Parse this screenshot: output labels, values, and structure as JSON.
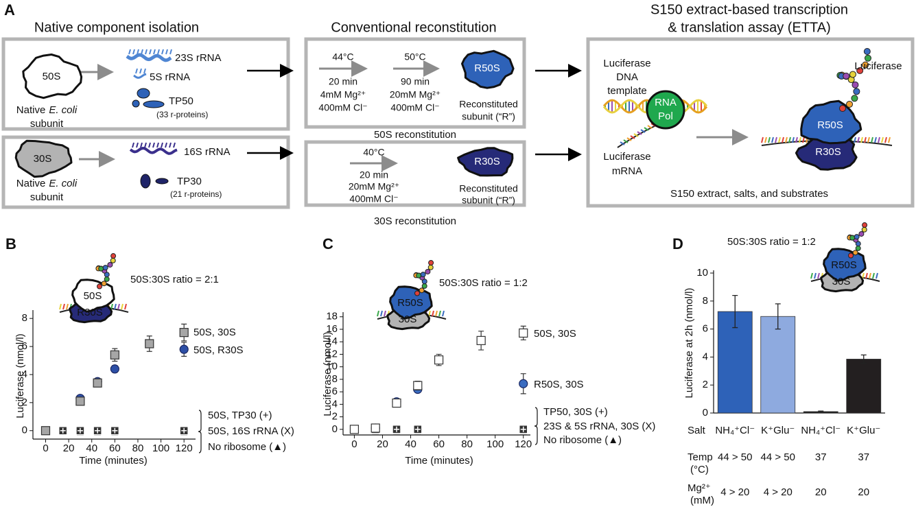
{
  "panel_labels": {
    "a": "A",
    "b": "B",
    "c": "C",
    "d": "D"
  },
  "diagram": {
    "headings": {
      "isolation": "Native component isolation",
      "reconstitution": "Conventional reconstitution",
      "etta_1": "S150 extract-based transcription",
      "etta_2": "& translation assay (ETTA)"
    },
    "native_50s": {
      "subunit": "50S",
      "native": "Native",
      "species": "E. coli",
      "word": "subunit",
      "rrna_23s": "23S rRNA",
      "rrna_5s": "5S rRNA",
      "proteins": "TP50",
      "protein_count": "(33 r-proteins)"
    },
    "native_30s": {
      "subunit": "30S",
      "native": "Native",
      "species": "E. coli",
      "word": "subunit",
      "rrna_16s": "16S rRNA",
      "proteins": "TP30",
      "protein_count": "(21 r-proteins)"
    },
    "recon_50s": {
      "step1": [
        "44°C",
        "20 min",
        "4mM Mg²⁺",
        "400mM Cl⁻"
      ],
      "step2": [
        "50°C",
        "90 min",
        "20mM Mg²⁺",
        "400mM Cl⁻"
      ],
      "subunit": "R50S",
      "product": [
        "Reconstituted",
        "subunit (“R”)"
      ],
      "caption": "50S reconstitution"
    },
    "recon_30s": {
      "step1": [
        "40°C",
        "20 min",
        "20mM Mg²⁺",
        "400mM Cl⁻"
      ],
      "subunit": "R30S",
      "product": [
        "Reconstituted",
        "subunit (“R”)"
      ],
      "caption": "30S reconstitution"
    },
    "etta": {
      "template": [
        "Luciferase",
        "DNA",
        "template"
      ],
      "polymerase": [
        "RNA",
        "Pol"
      ],
      "mrna": [
        "Luciferase",
        "mRNA"
      ],
      "protein": "Luciferase",
      "large": "R50S",
      "small": "R30S",
      "footer": "S150 extract, salts, and substrates"
    }
  },
  "chart_data": [
    {
      "type": "scatter",
      "title": "50S:30S ratio = 2:1",
      "inset_labels": [
        "50S",
        "R30S"
      ],
      "xlabel": "Time (minutes)",
      "ylabel": "Luciferase (nmol/l)",
      "xlim": [
        -11,
        130
      ],
      "xticks": [
        0,
        20,
        40,
        60,
        80,
        100,
        120
      ],
      "ylim": [
        -0.6,
        8.4
      ],
      "yticks": [
        0,
        2,
        4,
        6,
        8
      ],
      "series": [
        {
          "name": "50S, 30S",
          "marker": "square",
          "color": "#a6a6a6",
          "x": [
            0,
            30,
            45,
            60,
            90,
            120
          ],
          "values": [
            0,
            2.1,
            3.4,
            5.4,
            6.2,
            7.0
          ],
          "errors": [
            0,
            0.25,
            0.25,
            0.45,
            0.55,
            0.6
          ]
        },
        {
          "name": "50S, R30S",
          "marker": "circle",
          "color": "#2d4fa6",
          "x": [
            30,
            45,
            60,
            120
          ],
          "values": [
            2.3,
            3.5,
            4.4,
            5.8
          ],
          "errors": [
            0.1,
            0.2,
            0.25,
            0.5
          ]
        },
        {
          "name": "50S, TP30 (+)",
          "marker": "plus",
          "color": "#333333",
          "x": [
            15,
            30,
            45,
            60,
            120
          ],
          "values": [
            0,
            0,
            0,
            0,
            0
          ]
        },
        {
          "name": "50S, 16S rRNA (X)",
          "marker": "x",
          "color": "#333333",
          "x": [
            30,
            45,
            60,
            120
          ],
          "values": [
            0,
            0,
            0,
            0
          ]
        },
        {
          "name": "No ribosome (▲)",
          "marker": "triangle",
          "color": "#333333",
          "x": [
            30,
            45,
            60,
            120
          ],
          "values": [
            0,
            0,
            0,
            0
          ]
        }
      ]
    },
    {
      "type": "scatter",
      "title": "50S:30S ratio = 1:2",
      "inset_labels": [
        "R50S",
        "30S"
      ],
      "xlabel": "Time (minutes)",
      "ylabel": "Luciferase (nmol/l)",
      "xlim": [
        -8,
        125
      ],
      "xticks": [
        0,
        20,
        40,
        60,
        80,
        100,
        120
      ],
      "ylim": [
        -0.9,
        18.3
      ],
      "yticks": [
        0,
        2,
        4,
        6,
        8,
        10,
        12,
        14,
        16,
        18
      ],
      "series": [
        {
          "name": "50S, 30S",
          "marker": "square",
          "color": "#ffffff",
          "x": [
            0,
            15,
            30,
            45,
            60,
            90,
            120
          ],
          "values": [
            0,
            0.2,
            4.2,
            7.0,
            11.1,
            14.2,
            15.4
          ],
          "errors": [
            0,
            0.2,
            0.3,
            0.7,
            0.9,
            1.5,
            1.1
          ]
        },
        {
          "name": "R50S, 30S",
          "marker": "circle",
          "color": "#3a6cc0",
          "x": [
            15,
            30,
            45,
            120
          ],
          "values": [
            0.2,
            4.4,
            6.4,
            7.3
          ],
          "errors": [
            0.1,
            0.3,
            0.4,
            1.6
          ]
        },
        {
          "name": "TP50, 30S (+)",
          "marker": "plus",
          "color": "#333333",
          "x": [
            15,
            30,
            45,
            120
          ],
          "values": [
            0,
            0,
            0,
            0
          ]
        },
        {
          "name": "23S & 5S rRNA, 30S (X)",
          "marker": "x",
          "color": "#333333",
          "x": [
            15,
            30,
            45,
            120
          ],
          "values": [
            0,
            0,
            0,
            0
          ]
        },
        {
          "name": "No ribosome (▲)",
          "marker": "triangle",
          "color": "#333333",
          "x": [
            15,
            30,
            45,
            120
          ],
          "values": [
            0,
            0,
            0,
            0
          ]
        }
      ]
    },
    {
      "type": "bar",
      "title": "50S:30S ratio = 1:2",
      "inset_labels": [
        "R50S",
        "30S"
      ],
      "ylabel": "Luciferase at 2h (nmol/l)",
      "ylim": [
        0,
        10
      ],
      "yticks": [
        0,
        2,
        4,
        6,
        8,
        10
      ],
      "category_label": "Salt",
      "categories": [
        "NH₄⁺Cl⁻",
        "K⁺Glu⁻",
        "NH₄⁺Cl⁻",
        "K⁺Glu⁻"
      ],
      "values": [
        7.25,
        6.9,
        0.1,
        3.85
      ],
      "errors": [
        1.15,
        0.9,
        0.04,
        0.3
      ],
      "colors": [
        "#2e62b8",
        "#8eaadf",
        "#1a1a1a",
        "#231f20"
      ],
      "conditions": [
        {
          "label": [
            "Temp",
            "(°C)"
          ],
          "values": [
            "44 > 50",
            "44 > 50",
            "37",
            "37"
          ]
        },
        {
          "label": [
            "Mg²⁺",
            "(mM)"
          ],
          "values": [
            "4 > 20",
            "4 > 20",
            "20",
            "20"
          ]
        }
      ]
    }
  ]
}
